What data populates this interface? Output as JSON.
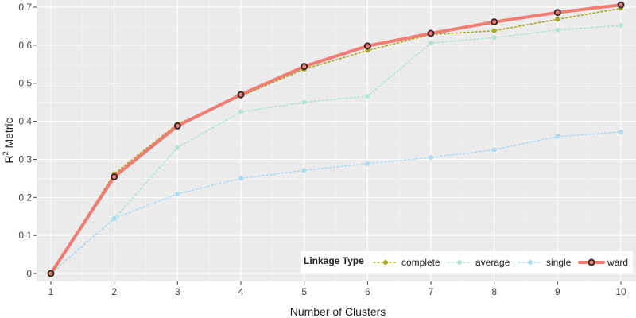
{
  "chart_data": {
    "type": "line",
    "xlabel": "Number of Clusters",
    "ylabel_main": "R",
    "ylabel_sup": "2",
    "ylabel_rest": " Metric",
    "x": [
      1,
      2,
      3,
      4,
      5,
      6,
      7,
      8,
      9,
      10
    ],
    "xlim": [
      1,
      10
    ],
    "ylim": [
      0,
      0.7
    ],
    "yticks": [
      0,
      0.1,
      0.2,
      0.3,
      0.4,
      0.5,
      0.6,
      0.7
    ],
    "ytick_labels": [
      "0",
      "0.1",
      "0.2",
      "0.3",
      "0.4",
      "0.5",
      "0.6",
      "0.7"
    ],
    "xtick_labels": [
      "1",
      "2",
      "3",
      "4",
      "5",
      "6",
      "7",
      "8",
      "9",
      "10"
    ],
    "grid": true,
    "legend": {
      "title": "Linkage Type",
      "placement": "bottom-right"
    },
    "series": [
      {
        "name": "complete",
        "color": "#a8a820",
        "style": "dotted",
        "values": [
          0.0,
          0.262,
          0.393,
          0.466,
          0.537,
          0.586,
          0.628,
          0.638,
          0.668,
          0.697
        ]
      },
      {
        "name": "average",
        "color": "#b2e6d2",
        "style": "dotted",
        "values": [
          0.0,
          0.144,
          0.331,
          0.425,
          0.45,
          0.466,
          0.606,
          0.62,
          0.64,
          0.652
        ]
      },
      {
        "name": "single",
        "color": "#aedcf0",
        "style": "dotted",
        "values": [
          0.0,
          0.145,
          0.209,
          0.25,
          0.271,
          0.289,
          0.305,
          0.325,
          0.36,
          0.372
        ]
      },
      {
        "name": "ward",
        "color": "#f07c74",
        "style": "solid",
        "values": [
          0.0,
          0.254,
          0.388,
          0.47,
          0.544,
          0.598,
          0.631,
          0.661,
          0.686,
          0.706
        ]
      }
    ]
  }
}
